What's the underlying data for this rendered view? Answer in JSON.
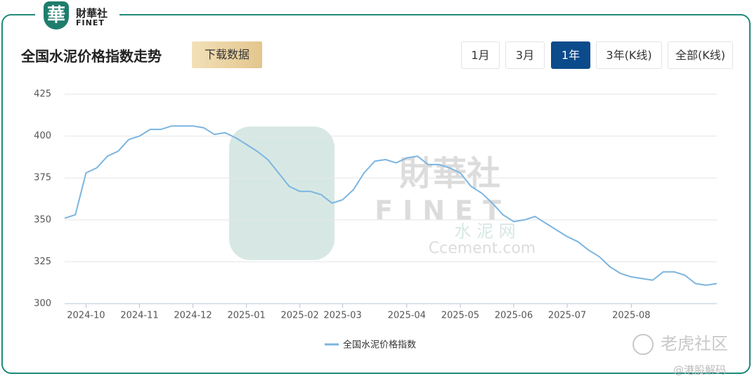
{
  "header": {
    "logo": "財華社",
    "logo_sub": "FINET",
    "title": "全国水泥价格指数走势",
    "download": "下载数据",
    "ranges": [
      "1月",
      "3月",
      "1年",
      "3年(K线)",
      "全部(K线)"
    ]
  },
  "chart_data": {
    "type": "line",
    "categories": [
      null,
      null,
      "2024-10",
      null,
      null,
      null,
      null,
      "2024-11",
      null,
      null,
      null,
      null,
      "2024-12",
      null,
      null,
      null,
      null,
      "2025-01",
      null,
      null,
      null,
      null,
      "2025-02",
      null,
      null,
      null,
      "2025-03",
      null,
      null,
      null,
      null,
      null,
      "2025-04",
      null,
      null,
      null,
      null,
      "2025-05",
      null,
      null,
      null,
      null,
      "2025-06",
      null,
      null,
      null,
      null,
      "2025-07",
      null,
      null,
      null,
      null,
      null,
      "2025-08",
      null,
      null,
      null,
      null,
      null,
      null,
      null,
      null
    ],
    "series": [
      {
        "name": "全国水泥价格指数",
        "color": "#7cb5e0",
        "values": [
          351,
          353,
          378,
          381,
          388,
          391,
          398,
          400,
          404,
          404,
          406,
          406,
          406,
          405,
          401,
          402,
          399,
          395,
          391,
          386,
          378,
          370,
          367,
          367,
          365,
          360,
          362,
          368,
          378,
          385,
          386,
          384,
          387,
          388,
          383,
          383,
          381,
          378,
          370,
          366,
          360,
          353,
          349,
          350,
          352,
          348,
          344,
          340,
          337,
          332,
          328,
          322,
          318,
          316,
          315,
          314,
          319,
          319,
          317,
          312,
          311,
          312
        ]
      }
    ],
    "ylim": [
      300,
      425
    ],
    "yticks": [
      300,
      325,
      350,
      375,
      400,
      425
    ],
    "grid": true
  },
  "watermark": {
    "brand": "財華社",
    "brand_en": "FINET",
    "site": "水 泥 网",
    "url": "Ccement.com",
    "community": "老虎社区",
    "author": "@港股解码"
  }
}
